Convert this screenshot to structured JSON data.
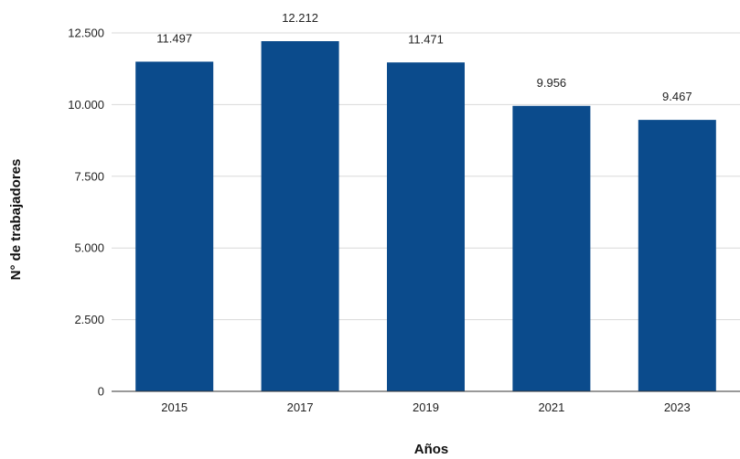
{
  "chart_data": {
    "type": "bar",
    "categories": [
      "2015",
      "2017",
      "2019",
      "2021",
      "2023"
    ],
    "values": [
      11497,
      12212,
      11471,
      9956,
      9467
    ],
    "value_labels": [
      "11.497",
      "12.212",
      "11.471",
      "9.956",
      "9.467"
    ],
    "xlabel": "Años",
    "ylabel": "N° de trabajadores",
    "ylim": [
      0,
      12500
    ],
    "yticks": [
      0,
      2500,
      5000,
      7500,
      10000,
      12500
    ],
    "ytick_labels": [
      "0",
      "2.500",
      "5.000",
      "7.500",
      "10.000",
      "12.500"
    ],
    "grid": true,
    "legend": "none",
    "colors": {
      "bar": "#0b4b8c"
    }
  }
}
